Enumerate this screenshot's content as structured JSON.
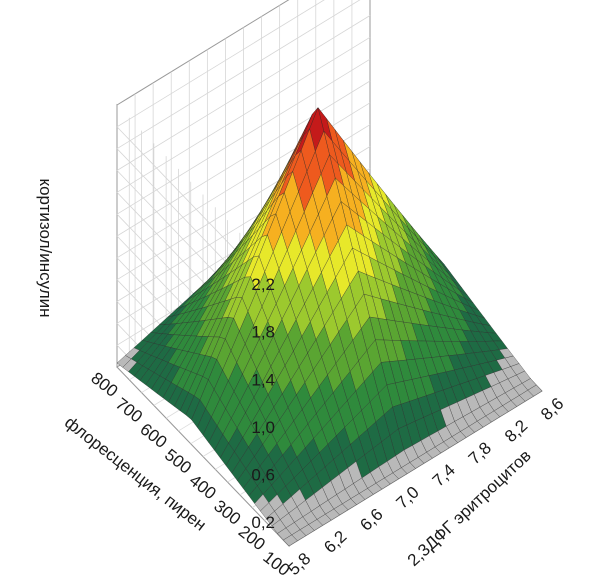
{
  "chart_data": {
    "type": "surface3d",
    "title": "",
    "zlabel": "кортизол/инсулин",
    "xlabel": "2,3ДФГ эритроцитов",
    "ylabel": "флоресценция, пирен",
    "x_ticks": [
      "5,8",
      "6,2",
      "6,6",
      "7,0",
      "7,4",
      "7,8",
      "8,2",
      "8,6"
    ],
    "y_ticks": [
      "100",
      "200",
      "300",
      "400",
      "500",
      "600",
      "700",
      "800"
    ],
    "z_ticks": [
      "0,2",
      "0,6",
      "1,0",
      "1,4",
      "1,8",
      "2,2"
    ],
    "xlim": [
      5.8,
      8.6
    ],
    "ylim": [
      100,
      800
    ],
    "zlim": [
      0,
      2.2
    ],
    "peak": {
      "x": 7.2,
      "y": 500,
      "z": 2.2
    },
    "surface_rows_along_y": [
      [
        0.0,
        0.0,
        0.0,
        0.0,
        0.0,
        0.0,
        0.0,
        0.0,
        0.0
      ],
      [
        0.0,
        0.0,
        0.1,
        0.2,
        0.3,
        0.2,
        0.1,
        0.0,
        0.0
      ],
      [
        0.0,
        0.1,
        0.5,
        0.8,
        1.0,
        0.8,
        0.5,
        0.1,
        0.0
      ],
      [
        0.0,
        0.2,
        0.8,
        1.4,
        1.7,
        1.4,
        0.8,
        0.2,
        0.0
      ],
      [
        0.0,
        0.3,
        1.0,
        1.7,
        2.2,
        1.7,
        1.0,
        0.3,
        0.0
      ],
      [
        0.0,
        0.2,
        0.8,
        1.4,
        1.7,
        1.4,
        0.8,
        0.2,
        0.0
      ],
      [
        0.0,
        0.1,
        0.5,
        0.8,
        1.0,
        0.8,
        0.5,
        0.1,
        0.0
      ],
      [
        0.0,
        0.0,
        0.1,
        0.2,
        0.3,
        0.2,
        0.1,
        0.0,
        0.0
      ],
      [
        0.0,
        0.0,
        0.0,
        0.0,
        0.0,
        0.0,
        0.0,
        0.0,
        0.0
      ]
    ],
    "grid": true,
    "colormap": [
      "#1e6b44",
      "#2f8a3c",
      "#5aa532",
      "#9cc92e",
      "#e7e82a",
      "#f6b020",
      "#ee5a1e",
      "#c41a1a"
    ],
    "below_zero_color": "#b9b9b9"
  }
}
